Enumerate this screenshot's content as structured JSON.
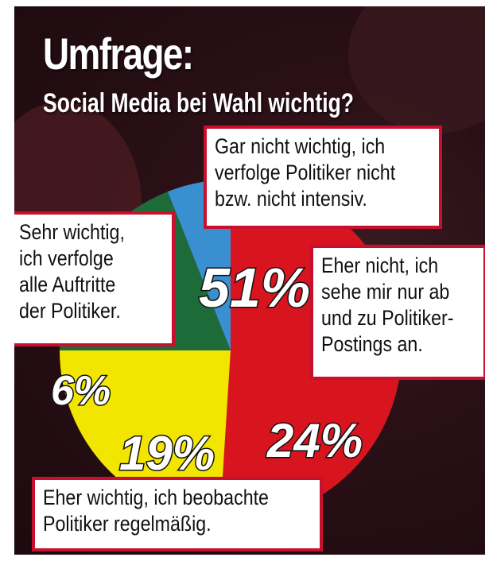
{
  "title": "Umfrage:",
  "subtitle": "Social Media bei Wahl wichtig?",
  "chart_data": {
    "type": "pie",
    "categories": [
      "Gar nicht wichtig, ich verfolge Politiker nicht bzw. nicht intensiv.",
      "Eher nicht, ich sehe mir nur ab und zu Politiker-Postings an.",
      "Eher wichtig, ich beobachte Politiker regelmäßig.",
      "Sehr wichtig, ich verfolge alle Auftritte der Politiker."
    ],
    "values": [
      51,
      24,
      19,
      6
    ],
    "labels": [
      "51%",
      "24%",
      "19%",
      "6%"
    ],
    "colors": [
      "#d8141f",
      "#f2e500",
      "#1e6b3a",
      "#3a8fd0"
    ]
  },
  "callouts": {
    "gar_nicht": "Gar nicht wichtig, ich\nverfolge Politiker nicht\nbzw. nicht intensiv.",
    "eher_nicht": "Eher nicht, ich\nsehe mir nur ab\nund zu Politiker-\nPostings an.",
    "eher_wichtig": "Eher wichtig, ich beobachte\nPolitiker regelmäßig.",
    "sehr_wichtig": "Sehr wichtig,\nich verfolge\nalle Auftritte\nder Politiker."
  }
}
